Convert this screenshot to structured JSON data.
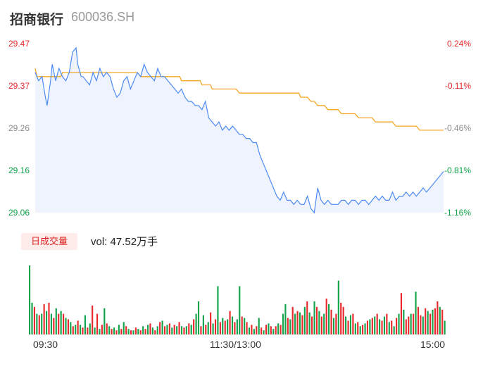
{
  "header": {
    "name": "招商银行",
    "code": "600036.SH"
  },
  "colors": {
    "up": "#e8282b",
    "down": "#11a24a",
    "flat": "#8c8c8c",
    "price_line": "#4c8bf5",
    "avg_line": "#f5a623"
  },
  "chart_data": [
    {
      "type": "line",
      "title": "",
      "prev_close": 29.4,
      "y_ticks_price": [
        "29.47",
        "29.37",
        "29.26",
        "29.16",
        "29.06"
      ],
      "y_ticks_pct": [
        "0.24%",
        "-0.11%",
        "-0.46%",
        "-0.81%",
        "-1.16%"
      ],
      "ylim": [
        29.06,
        29.47
      ],
      "x_ticks": [
        "09:30",
        "11:30/13:00",
        "15:00"
      ],
      "x_range_minutes": [
        0,
        240
      ],
      "series": [
        {
          "role": "price",
          "x": [
            0,
            2,
            4,
            6,
            7,
            9,
            10,
            12,
            14,
            16,
            18,
            20,
            22,
            24,
            25,
            27,
            28,
            30,
            32,
            34,
            36,
            38,
            40,
            42,
            44,
            46,
            48,
            50,
            52,
            54,
            56,
            58,
            60,
            62,
            64,
            66,
            68,
            70,
            72,
            74,
            76,
            78,
            80,
            82,
            84,
            86,
            88,
            90,
            92,
            94,
            96,
            98,
            100,
            102,
            104,
            106,
            108,
            110,
            112,
            114,
            116,
            118,
            120,
            122,
            124,
            126,
            128,
            130,
            132,
            134,
            136,
            138,
            140,
            142,
            144,
            146,
            148,
            150,
            152,
            154,
            156,
            158,
            160,
            162,
            164,
            166,
            168,
            170,
            172,
            174,
            176,
            178,
            180,
            182,
            184,
            186,
            188,
            190,
            192,
            194,
            196,
            198,
            200,
            202,
            204,
            206,
            208,
            210,
            212,
            214,
            216,
            218,
            220,
            222,
            224,
            226,
            228,
            230,
            232,
            234,
            236,
            238,
            240
          ],
          "values": [
            29.4,
            29.38,
            29.39,
            29.34,
            29.32,
            29.38,
            29.42,
            29.38,
            29.41,
            29.39,
            29.38,
            29.4,
            29.45,
            29.46,
            29.42,
            29.39,
            29.39,
            29.38,
            29.37,
            29.4,
            29.38,
            29.41,
            29.39,
            29.4,
            29.39,
            29.36,
            29.34,
            29.35,
            29.38,
            29.39,
            29.36,
            29.38,
            29.4,
            29.39,
            29.42,
            29.4,
            29.39,
            29.38,
            29.41,
            29.39,
            29.39,
            29.38,
            29.37,
            29.36,
            29.35,
            29.36,
            29.34,
            29.33,
            29.33,
            29.32,
            29.32,
            29.31,
            29.33,
            29.29,
            29.28,
            29.27,
            29.28,
            29.26,
            29.27,
            29.26,
            29.27,
            29.26,
            29.25,
            29.25,
            29.24,
            29.24,
            29.23,
            29.23,
            29.2,
            29.18,
            29.16,
            29.14,
            29.12,
            29.1,
            29.09,
            29.11,
            29.09,
            29.09,
            29.08,
            29.09,
            29.08,
            29.08,
            29.1,
            29.07,
            29.06,
            29.12,
            29.09,
            29.08,
            29.09,
            29.08,
            29.08,
            29.08,
            29.09,
            29.09,
            29.08,
            29.09,
            29.09,
            29.08,
            29.09,
            29.09,
            29.08,
            29.09,
            29.1,
            29.09,
            29.1,
            29.09,
            29.09,
            29.11,
            29.09,
            29.1,
            29.1,
            29.11,
            29.1,
            29.11,
            29.1,
            29.11,
            29.12,
            29.11,
            29.12,
            29.13,
            29.14,
            29.15,
            29.16
          ]
        },
        {
          "role": "average",
          "x": [
            0,
            1,
            3,
            4,
            15,
            16,
            60,
            62,
            75,
            76,
            85,
            86,
            97,
            98,
            103,
            104,
            118,
            120,
            124,
            126,
            155,
            156,
            160,
            162,
            164,
            166,
            170,
            172,
            178,
            180,
            188,
            190,
            198,
            200,
            210,
            212,
            220,
            222,
            224,
            226,
            230,
            232,
            240
          ],
          "values": [
            29.41,
            29.39,
            29.39,
            29.39,
            29.39,
            29.4,
            29.4,
            29.39,
            29.39,
            29.39,
            29.39,
            29.38,
            29.38,
            29.37,
            29.37,
            29.36,
            29.36,
            29.35,
            29.35,
            29.35,
            29.35,
            29.34,
            29.34,
            29.33,
            29.33,
            29.32,
            29.32,
            29.31,
            29.31,
            29.3,
            29.3,
            29.29,
            29.29,
            29.28,
            29.28,
            29.27,
            29.27,
            29.27,
            29.27,
            29.26,
            29.26,
            29.26,
            29.26
          ]
        }
      ]
    },
    {
      "type": "bar",
      "tab_label": "日成交量",
      "volume_label": "vol: 47.52万手",
      "unit_note": "relative height",
      "values": [
        1.0,
        0.46,
        0.4,
        0.3,
        0.28,
        0.3,
        0.44,
        0.34,
        0.46,
        0.3,
        0.24,
        0.38,
        0.3,
        0.34,
        0.3,
        0.24,
        0.22,
        0.18,
        0.12,
        0.14,
        0.2,
        0.14,
        0.1,
        0.28,
        0.1,
        0.16,
        0.42,
        0.1,
        0.3,
        0.08,
        0.14,
        0.38,
        0.16,
        0.12,
        0.08,
        0.1,
        0.06,
        0.14,
        0.08,
        0.18,
        0.12,
        0.08,
        0.06,
        0.06,
        0.1,
        0.08,
        0.06,
        0.12,
        0.08,
        0.14,
        0.16,
        0.1,
        0.06,
        0.12,
        0.18,
        0.2,
        0.12,
        0.14,
        0.16,
        0.1,
        0.14,
        0.12,
        0.18,
        0.12,
        0.1,
        0.12,
        0.16,
        0.14,
        0.22,
        0.3,
        0.48,
        0.12,
        0.28,
        0.14,
        0.18,
        0.32,
        0.16,
        0.22,
        0.7,
        0.18,
        0.24,
        0.2,
        0.22,
        0.34,
        0.26,
        0.18,
        0.22,
        0.7,
        0.26,
        0.24,
        0.18,
        0.1,
        0.14,
        0.08,
        0.12,
        0.24,
        0.1,
        0.06,
        0.14,
        0.16,
        0.12,
        0.08,
        0.12,
        0.16,
        0.14,
        0.3,
        0.44,
        0.24,
        0.22,
        0.4,
        0.3,
        0.34,
        0.32,
        0.28,
        0.4,
        0.48,
        0.32,
        0.26,
        0.48,
        0.4,
        0.34,
        0.26,
        0.3,
        0.52,
        0.44,
        0.36,
        0.24,
        0.3,
        0.78,
        0.46,
        0.4,
        0.26,
        0.2,
        0.28,
        0.3,
        0.16,
        0.18,
        0.12,
        0.14,
        0.16,
        0.2,
        0.22,
        0.24,
        0.26,
        0.3,
        0.22,
        0.2,
        0.26,
        0.3,
        0.18,
        0.2,
        0.12,
        0.24,
        0.3,
        0.6,
        0.36,
        0.22,
        0.26,
        0.3,
        0.3,
        0.62,
        0.4,
        0.28,
        0.26,
        0.38,
        0.34,
        0.3,
        0.36,
        0.38,
        0.48,
        0.4,
        0.36,
        0.2
      ],
      "colors": [
        "d",
        "d",
        "r",
        "d",
        "r",
        "d",
        "r",
        "d",
        "r",
        "d",
        "r",
        "d",
        "r",
        "d",
        "r",
        "d",
        "r",
        "d",
        "r",
        "d",
        "r",
        "d",
        "r",
        "d",
        "r",
        "d",
        "r",
        "d",
        "r",
        "d",
        "r",
        "d",
        "r",
        "d",
        "r",
        "d",
        "r",
        "d",
        "r",
        "d",
        "r",
        "d",
        "r",
        "d",
        "r",
        "d",
        "r",
        "d",
        "r",
        "d",
        "r",
        "d",
        "r",
        "d",
        "r",
        "d",
        "r",
        "d",
        "r",
        "d",
        "r",
        "d",
        "r",
        "d",
        "r",
        "d",
        "r",
        "d",
        "r",
        "d",
        "d",
        "r",
        "d",
        "r",
        "d",
        "r",
        "d",
        "r",
        "d",
        "r",
        "d",
        "r",
        "d",
        "r",
        "d",
        "r",
        "d",
        "d",
        "r",
        "d",
        "r",
        "d",
        "r",
        "d",
        "r",
        "d",
        "r",
        "d",
        "r",
        "d",
        "r",
        "d",
        "r",
        "d",
        "r",
        "d",
        "d",
        "r",
        "d",
        "r",
        "d",
        "r",
        "d",
        "r",
        "d",
        "r",
        "d",
        "r",
        "d",
        "r",
        "d",
        "r",
        "d",
        "r",
        "d",
        "r",
        "d",
        "r",
        "d",
        "r",
        "r",
        "d",
        "r",
        "d",
        "r",
        "d",
        "r",
        "d",
        "r",
        "d",
        "r",
        "d",
        "r",
        "d",
        "r",
        "d",
        "r",
        "d",
        "r",
        "d",
        "r",
        "d",
        "r",
        "d",
        "r",
        "d",
        "r",
        "r",
        "d",
        "r",
        "d",
        "r",
        "r",
        "d",
        "r",
        "d",
        "r",
        "d",
        "r",
        "r",
        "d",
        "r",
        "d",
        "r",
        "f"
      ]
    }
  ]
}
